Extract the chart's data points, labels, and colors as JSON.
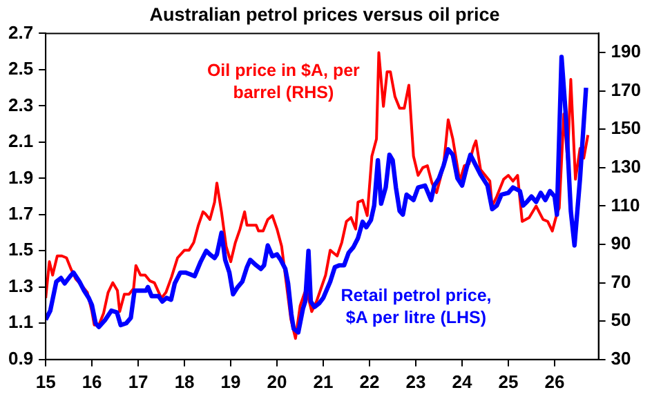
{
  "chart_data": {
    "type": "line",
    "title": "Australian petrol prices versus oil price",
    "annotations": [
      "Oil price in $A, per barrel (RHS)",
      "Retail petrol price, $A per litre (LHS)"
    ],
    "xlim": [
      15,
      26.95
    ],
    "xticks": [
      15,
      16,
      17,
      18,
      19,
      20,
      21,
      22,
      23,
      24,
      25,
      26
    ],
    "ylim": [
      0.9,
      2.7
    ],
    "yticks": [
      0.9,
      1.1,
      1.3,
      1.5,
      1.7,
      1.9,
      2.1,
      2.3,
      2.5,
      2.7
    ],
    "y2lim": [
      30,
      200
    ],
    "y2ticks": [
      30,
      50,
      70,
      90,
      110,
      130,
      150,
      170,
      190
    ],
    "grid": false,
    "legend": false,
    "marker": "none",
    "line_style": "solid",
    "series": [
      {
        "color": "#ff0000",
        "axis": "y2",
        "x": [
          15.0,
          15.08,
          15.15,
          15.25,
          15.35,
          15.45,
          15.55,
          15.65,
          15.8,
          15.9,
          16.0,
          16.05,
          16.15,
          16.25,
          16.35,
          16.45,
          16.55,
          16.6,
          16.7,
          16.8,
          16.9,
          16.95,
          17.05,
          17.15,
          17.25,
          17.35,
          17.5,
          17.6,
          17.72,
          17.85,
          18.0,
          18.1,
          18.2,
          18.3,
          18.4,
          18.45,
          18.55,
          18.65,
          18.7,
          18.8,
          18.9,
          19.0,
          19.1,
          19.2,
          19.3,
          19.35,
          19.45,
          19.55,
          19.6,
          19.7,
          19.8,
          19.9,
          20.0,
          20.1,
          20.2,
          20.3,
          20.4,
          20.5,
          20.6,
          20.65,
          20.75,
          20.85,
          20.95,
          21.05,
          21.15,
          21.2,
          21.3,
          21.4,
          21.5,
          21.6,
          21.7,
          21.75,
          21.85,
          21.95,
          22.05,
          22.15,
          22.2,
          22.3,
          22.38,
          22.45,
          22.55,
          22.65,
          22.75,
          22.85,
          22.95,
          23.05,
          23.15,
          23.25,
          23.35,
          23.45,
          23.6,
          23.7,
          23.8,
          23.95,
          24.05,
          24.15,
          24.25,
          24.3,
          24.4,
          24.5,
          24.6,
          24.65,
          24.75,
          24.9,
          25.0,
          25.1,
          25.2,
          25.3,
          25.45,
          25.6,
          25.75,
          25.85,
          25.95,
          26.05,
          26.1,
          26.2,
          26.28,
          26.35,
          26.45,
          26.55,
          26.63,
          26.72
        ],
        "values": [
          62,
          81,
          74,
          84,
          84,
          83,
          77,
          72,
          68,
          65,
          55,
          48,
          48,
          54,
          65,
          70,
          66,
          55,
          64,
          64,
          67,
          79,
          74,
          74,
          71,
          70,
          62,
          65,
          73,
          83,
          87,
          87,
          91,
          100,
          107,
          106,
          103,
          112,
          122,
          107,
          89,
          81,
          91,
          98,
          107,
          100,
          100,
          100,
          97,
          97,
          103,
          105,
          98,
          89,
          70,
          51,
          41,
          58,
          65,
          65,
          55,
          60,
          67,
          74,
          87,
          86,
          84,
          91,
          102,
          104,
          98,
          112,
          113,
          105,
          136,
          145,
          190,
          162,
          180,
          180,
          167,
          161,
          161,
          173,
          136,
          126,
          130,
          131,
          122,
          117,
          131,
          155,
          145,
          123,
          131,
          132,
          141,
          144,
          129,
          126,
          123,
          110,
          115,
          124,
          126,
          123,
          126,
          102,
          104,
          110,
          103,
          102,
          97,
          106,
          109,
          158,
          134,
          176,
          124,
          140,
          135,
          147
        ]
      },
      {
        "color": "#0000ff",
        "axis": "y",
        "x": [
          15.0,
          15.1,
          15.23,
          15.33,
          15.41,
          15.53,
          15.6,
          15.73,
          15.83,
          15.93,
          16.0,
          16.08,
          16.15,
          16.29,
          16.42,
          16.54,
          16.62,
          16.74,
          16.84,
          16.92,
          17.04,
          17.17,
          17.21,
          17.29,
          17.44,
          17.52,
          17.61,
          17.71,
          17.79,
          17.91,
          18.02,
          18.13,
          18.22,
          18.35,
          18.47,
          18.55,
          18.65,
          18.7,
          18.8,
          18.88,
          18.97,
          19.05,
          19.15,
          19.25,
          19.35,
          19.42,
          19.55,
          19.65,
          19.72,
          19.8,
          19.9,
          20.0,
          20.08,
          20.18,
          20.24,
          20.31,
          20.36,
          20.46,
          20.56,
          20.61,
          20.68,
          20.73,
          20.81,
          20.91,
          21.0,
          21.15,
          21.25,
          21.35,
          21.45,
          21.55,
          21.65,
          21.75,
          21.85,
          21.93,
          22.03,
          22.1,
          22.18,
          22.25,
          22.35,
          22.43,
          22.5,
          22.57,
          22.65,
          22.72,
          22.8,
          22.95,
          23.05,
          23.2,
          23.33,
          23.4,
          23.5,
          23.6,
          23.7,
          23.8,
          23.9,
          24.0,
          24.1,
          24.18,
          24.3,
          24.4,
          24.55,
          24.65,
          24.75,
          24.85,
          25.0,
          25.1,
          25.25,
          25.32,
          25.4,
          25.5,
          25.6,
          25.7,
          25.8,
          25.9,
          26.0,
          26.05,
          26.15,
          26.25,
          26.35,
          26.43,
          26.55,
          26.68
        ],
        "values": [
          1.12,
          1.17,
          1.33,
          1.35,
          1.32,
          1.36,
          1.38,
          1.33,
          1.28,
          1.24,
          1.2,
          1.1,
          1.08,
          1.12,
          1.17,
          1.16,
          1.09,
          1.1,
          1.13,
          1.28,
          1.28,
          1.28,
          1.3,
          1.25,
          1.25,
          1.22,
          1.24,
          1.23,
          1.32,
          1.38,
          1.38,
          1.37,
          1.36,
          1.44,
          1.5,
          1.48,
          1.46,
          1.48,
          1.6,
          1.45,
          1.38,
          1.26,
          1.3,
          1.33,
          1.41,
          1.45,
          1.42,
          1.4,
          1.42,
          1.53,
          1.47,
          1.48,
          1.45,
          1.4,
          1.32,
          1.15,
          1.07,
          1.05,
          1.18,
          1.22,
          1.5,
          1.22,
          1.19,
          1.21,
          1.24,
          1.33,
          1.41,
          1.42,
          1.42,
          1.49,
          1.52,
          1.57,
          1.66,
          1.63,
          1.67,
          1.75,
          2.0,
          1.76,
          1.85,
          2.03,
          2.0,
          1.85,
          1.72,
          1.7,
          1.81,
          1.78,
          1.85,
          1.86,
          1.78,
          1.86,
          1.9,
          1.97,
          2.06,
          2.03,
          1.9,
          1.86,
          1.96,
          2.03,
          1.97,
          1.92,
          1.86,
          1.73,
          1.75,
          1.81,
          1.82,
          1.85,
          1.83,
          1.75,
          1.77,
          1.8,
          1.77,
          1.82,
          1.78,
          1.83,
          1.8,
          1.7,
          2.57,
          2.22,
          1.72,
          1.53,
          1.9,
          2.4
        ]
      }
    ]
  }
}
